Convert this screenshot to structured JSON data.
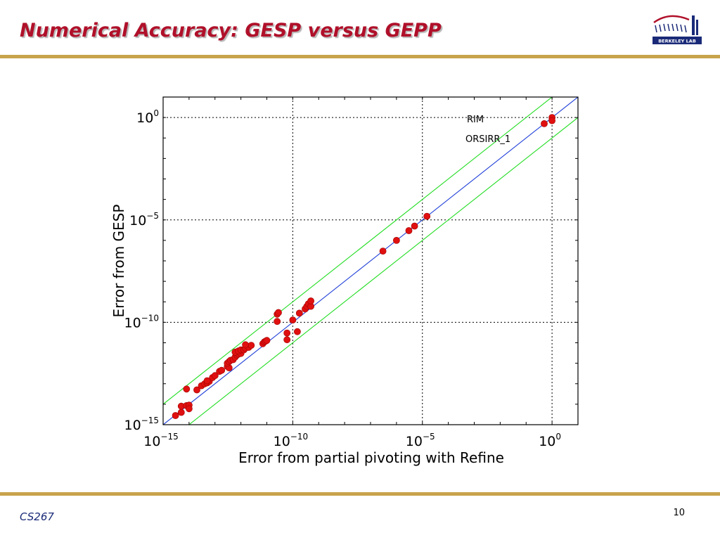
{
  "slide": {
    "title": "Numerical Accuracy: GESP versus GEPP",
    "footer": "CS267",
    "page_number": "10",
    "logo_text": "BERKELEY LAB"
  },
  "colors": {
    "title": "#b0102a",
    "bar": "#c8a34c",
    "diagonal": "#1f3fd8",
    "bound": "#22dd22",
    "points": "#e01010"
  },
  "chart_data": {
    "type": "scatter",
    "xscale": "log",
    "yscale": "log",
    "xlabel": "Error from partial pivoting with Refine",
    "ylabel": "Error from GESP",
    "xlim": [
      1e-15,
      10
    ],
    "ylim": [
      1e-15,
      10
    ],
    "xticks": [
      {
        "value": 1e-15,
        "base": "10",
        "exp": "−15"
      },
      {
        "value": 1e-10,
        "base": "10",
        "exp": "−10"
      },
      {
        "value": 1e-05,
        "base": "10",
        "exp": "−5"
      },
      {
        "value": 1,
        "base": "10",
        "exp": "0"
      }
    ],
    "yticks": [
      {
        "value": 1e-15,
        "base": "10",
        "exp": "−15"
      },
      {
        "value": 1e-10,
        "base": "10",
        "exp": "−10"
      },
      {
        "value": 1e-05,
        "base": "10",
        "exp": "−5"
      },
      {
        "value": 1,
        "base": "10",
        "exp": "0"
      }
    ],
    "grid": true,
    "lines": [
      {
        "kind": "diagonal",
        "relation": "y = x"
      },
      {
        "kind": "bound",
        "relation": "y = 10x"
      },
      {
        "kind": "bound",
        "relation": "y = 0.1x"
      }
    ],
    "annotations": [
      "RIM",
      "ORSIRR_1"
    ],
    "points": [
      [
        3e-15,
        2.8e-15
      ],
      [
        5e-15,
        4e-15
      ],
      [
        5e-15,
        8e-15
      ],
      [
        8e-15,
        8.5e-15
      ],
      [
        1e-14,
        9e-15
      ],
      [
        1e-14,
        6e-15
      ],
      [
        8e-15,
        5.5e-14
      ],
      [
        2e-14,
        5e-14
      ],
      [
        3e-14,
        8e-14
      ],
      [
        4e-14,
        1e-13
      ],
      [
        5e-14,
        1.1e-13
      ],
      [
        6e-14,
        1.3e-13
      ],
      [
        5e-14,
        1.4e-13
      ],
      [
        8e-14,
        2e-13
      ],
      [
        1e-13,
        2.5e-13
      ],
      [
        1.5e-13,
        4e-13
      ],
      [
        1.8e-13,
        4.5e-13
      ],
      [
        3e-13,
        7e-13
      ],
      [
        3.5e-13,
        6e-13
      ],
      [
        3e-13,
        1e-12
      ],
      [
        3.5e-13,
        1.2e-12
      ],
      [
        4e-13,
        1.4e-12
      ],
      [
        5e-13,
        1.5e-12
      ],
      [
        6e-13,
        2e-12
      ],
      [
        7e-13,
        2.5e-12
      ],
      [
        8e-13,
        2.8e-12
      ],
      [
        1e-12,
        3e-12
      ],
      [
        6e-13,
        3.5e-12
      ],
      [
        8e-13,
        4e-12
      ],
      [
        1e-12,
        4.5e-12
      ],
      [
        1.3e-12,
        4.5e-12
      ],
      [
        1.5e-12,
        5.5e-12
      ],
      [
        2e-12,
        6e-12
      ],
      [
        2.5e-12,
        7.5e-12
      ],
      [
        1.5e-12,
        8e-12
      ],
      [
        7e-12,
        9e-12
      ],
      [
        8e-12,
        1.1e-11
      ],
      [
        9e-12,
        1.2e-11
      ],
      [
        1e-11,
        1.3e-11
      ],
      [
        6e-11,
        1.4e-11
      ],
      [
        6e-11,
        3e-11
      ],
      [
        2.5e-11,
        1.1e-10
      ],
      [
        2.5e-11,
        2.5e-10
      ],
      [
        2.8e-11,
        3e-10
      ],
      [
        1e-10,
        1.3e-10
      ],
      [
        1.5e-10,
        3.5e-11
      ],
      [
        1.8e-10,
        2.8e-10
      ],
      [
        3e-10,
        4.5e-10
      ],
      [
        3.5e-10,
        6e-10
      ],
      [
        4e-10,
        8e-10
      ],
      [
        5e-10,
        6e-10
      ],
      [
        5e-10,
        1.1e-09
      ],
      [
        3e-07,
        3e-07
      ],
      [
        1e-06,
        1e-06
      ],
      [
        3e-06,
        3e-06
      ],
      [
        5e-06,
        5e-06
      ],
      [
        1.5e-05,
        1.5e-05
      ],
      [
        0.5,
        0.5
      ],
      [
        1,
        1
      ],
      [
        1,
        0.7
      ]
    ]
  }
}
